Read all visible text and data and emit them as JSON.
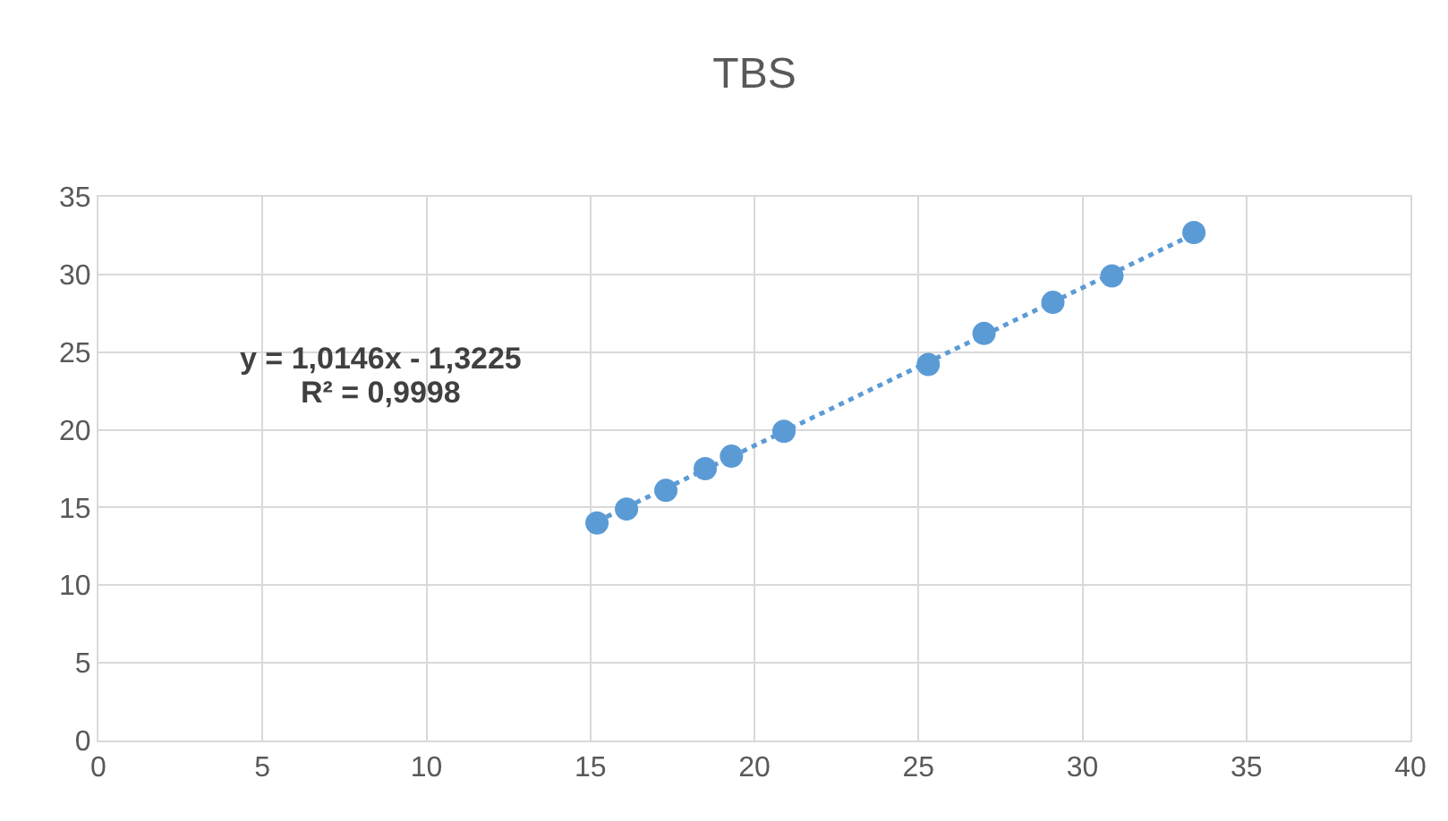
{
  "chart_data": {
    "type": "scatter",
    "title": "TBS",
    "x": [
      15.2,
      16.1,
      17.3,
      18.5,
      19.3,
      20.9,
      25.3,
      27.0,
      29.1,
      30.9,
      33.4
    ],
    "series": [
      {
        "color": "#5b9bd5",
        "values": [
          14.0,
          14.9,
          16.1,
          17.5,
          18.3,
          19.9,
          24.2,
          26.2,
          28.2,
          29.9,
          32.7
        ],
        "marker": "circle"
      },
      {
        "type": "line",
        "color": "#5b9bd5",
        "x": [
          15.2,
          33.4
        ],
        "values": [
          14.1,
          32.6
        ],
        "line_style": "dotted",
        "marker": "none"
      }
    ],
    "annotations": [
      "y = 1,0146x - 1,3225",
      "R² = 0,9998"
    ],
    "xlim": [
      0,
      40
    ],
    "xticks": [
      0,
      5,
      10,
      15,
      20,
      25,
      30,
      35,
      40
    ],
    "ylim": [
      0,
      35
    ],
    "yticks": [
      0,
      5,
      10,
      15,
      20,
      25,
      30,
      35
    ],
    "grid": true
  }
}
